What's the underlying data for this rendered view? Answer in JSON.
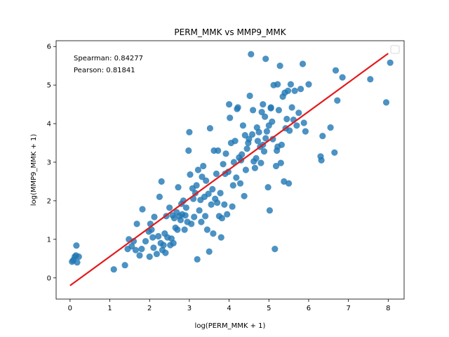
{
  "chart_data": {
    "type": "scatter",
    "title": "PERM_MMK vs MMP9_MMK",
    "xlabel": "log(PERM_MMK + 1)",
    "ylabel": "log(MMP9_MMK + 1)",
    "xlim": [
      -0.35,
      8.4
    ],
    "ylim": [
      -0.55,
      6.15
    ],
    "x_ticks": [
      0,
      1,
      2,
      3,
      4,
      5,
      6,
      7,
      8
    ],
    "y_ticks": [
      0,
      1,
      2,
      3,
      4,
      5,
      6
    ],
    "annotations": [
      "Spearman: 0.84277",
      "Pearson: 0.81841"
    ],
    "legend": {
      "placement": "top-right",
      "entries": []
    },
    "grid": false,
    "colors": {
      "points": "#1f77b4",
      "fit_line": "#e31a1c"
    },
    "fit_line": {
      "x": [
        0.0,
        8.0
      ],
      "y": [
        -0.2,
        5.82
      ]
    },
    "points": [
      [
        0.05,
        0.42
      ],
      [
        0.08,
        0.46
      ],
      [
        0.12,
        0.55
      ],
      [
        0.15,
        0.58
      ],
      [
        0.16,
        0.84
      ],
      [
        0.18,
        0.4
      ],
      [
        0.22,
        0.55
      ],
      [
        1.1,
        0.22
      ],
      [
        1.38,
        0.33
      ],
      [
        1.45,
        0.75
      ],
      [
        1.48,
        1.0
      ],
      [
        1.55,
        0.82
      ],
      [
        1.6,
        0.95
      ],
      [
        1.65,
        0.72
      ],
      [
        1.68,
        1.4
      ],
      [
        1.75,
        0.58
      ],
      [
        1.8,
        0.75
      ],
      [
        1.82,
        1.78
      ],
      [
        1.9,
        0.95
      ],
      [
        1.98,
        1.2
      ],
      [
        2.0,
        0.55
      ],
      [
        2.02,
        1.4
      ],
      [
        2.05,
        1.25
      ],
      [
        2.08,
        1.05
      ],
      [
        2.1,
        0.78
      ],
      [
        2.12,
        1.58
      ],
      [
        2.18,
        0.62
      ],
      [
        2.22,
        1.08
      ],
      [
        2.25,
        2.1
      ],
      [
        2.28,
        0.9
      ],
      [
        2.3,
        2.5
      ],
      [
        2.32,
        0.72
      ],
      [
        2.35,
        0.85
      ],
      [
        2.38,
        1.15
      ],
      [
        2.4,
        0.65
      ],
      [
        2.42,
        1.6
      ],
      [
        2.45,
        1.05
      ],
      [
        2.5,
        1.82
      ],
      [
        2.52,
        0.85
      ],
      [
        2.55,
        1.02
      ],
      [
        2.58,
        1.62
      ],
      [
        2.6,
        0.9
      ],
      [
        2.62,
        1.55
      ],
      [
        2.65,
        1.3
      ],
      [
        2.68,
        1.7
      ],
      [
        2.7,
        1.25
      ],
      [
        2.72,
        2.35
      ],
      [
        2.75,
        1.6
      ],
      [
        2.78,
        1.5
      ],
      [
        2.8,
        1.92
      ],
      [
        2.82,
        1.65
      ],
      [
        2.85,
        2.0
      ],
      [
        2.88,
        1.25
      ],
      [
        2.9,
        1.62
      ],
      [
        2.92,
        1.82
      ],
      [
        2.95,
        1.45
      ],
      [
        2.98,
        3.3
      ],
      [
        3.0,
        3.78
      ],
      [
        3.02,
        2.68
      ],
      [
        3.05,
        1.4
      ],
      [
        3.08,
        2.32
      ],
      [
        3.1,
        2.05
      ],
      [
        3.12,
        1.58
      ],
      [
        3.15,
        2.2
      ],
      [
        3.18,
        2.4
      ],
      [
        3.2,
        0.48
      ],
      [
        3.22,
        2.8
      ],
      [
        3.25,
        1.75
      ],
      [
        3.28,
        2.02
      ],
      [
        3.3,
        1.45
      ],
      [
        3.32,
        2.62
      ],
      [
        3.35,
        2.9
      ],
      [
        3.38,
        2.1
      ],
      [
        3.4,
        1.6
      ],
      [
        3.42,
        2.52
      ],
      [
        3.45,
        1.25
      ],
      [
        3.48,
        2.18
      ],
      [
        3.5,
        0.68
      ],
      [
        3.52,
        3.88
      ],
      [
        3.55,
        1.9
      ],
      [
        3.58,
        2.3
      ],
      [
        3.6,
        1.15
      ],
      [
        3.62,
        3.3
      ],
      [
        3.65,
        2.05
      ],
      [
        3.68,
        2.7
      ],
      [
        3.7,
        1.95
      ],
      [
        3.72,
        3.3
      ],
      [
        3.75,
        1.6
      ],
      [
        3.78,
        2.2
      ],
      [
        3.8,
        1.05
      ],
      [
        3.82,
        1.55
      ],
      [
        3.85,
        2.95
      ],
      [
        3.88,
        1.9
      ],
      [
        3.9,
        2.7
      ],
      [
        3.92,
        3.22
      ],
      [
        3.95,
        1.65
      ],
      [
        3.98,
        2.75
      ],
      [
        4.0,
        4.5
      ],
      [
        4.02,
        4.15
      ],
      [
        4.05,
        3.5
      ],
      [
        4.08,
        1.85
      ],
      [
        4.1,
        2.4
      ],
      [
        4.12,
        3.0
      ],
      [
        4.15,
        3.55
      ],
      [
        4.18,
        2.6
      ],
      [
        4.2,
        4.38
      ],
      [
        4.22,
        4.42
      ],
      [
        4.25,
        3.12
      ],
      [
        4.28,
        2.45
      ],
      [
        4.3,
        3.05
      ],
      [
        4.32,
        3.2
      ],
      [
        4.35,
        3.95
      ],
      [
        4.38,
        2.12
      ],
      [
        4.4,
        3.7
      ],
      [
        4.42,
        2.8
      ],
      [
        4.45,
        3.35
      ],
      [
        4.48,
        3.5
      ],
      [
        4.5,
        3.6
      ],
      [
        4.52,
        4.72
      ],
      [
        4.55,
        5.8
      ],
      [
        4.58,
        3.72
      ],
      [
        4.6,
        4.35
      ],
      [
        4.62,
        3.02
      ],
      [
        4.65,
        2.85
      ],
      [
        4.68,
        3.1
      ],
      [
        4.7,
        3.9
      ],
      [
        4.72,
        3.55
      ],
      [
        4.75,
        3.78
      ],
      [
        4.78,
        3.4
      ],
      [
        4.8,
        2.98
      ],
      [
        4.82,
        4.3
      ],
      [
        4.85,
        4.5
      ],
      [
        4.88,
        3.28
      ],
      [
        4.9,
        4.18
      ],
      [
        4.92,
        3.62
      ],
      [
        4.95,
        3.8
      ],
      [
        4.98,
        2.35
      ],
      [
        5.0,
        3.95
      ],
      [
        5.02,
        1.75
      ],
      [
        5.05,
        4.4
      ],
      [
        5.08,
        4.05
      ],
      [
        5.1,
        3.6
      ],
      [
        5.12,
        5.0
      ],
      [
        5.15,
        0.75
      ],
      [
        5.18,
        2.9
      ],
      [
        5.2,
        3.3
      ],
      [
        5.22,
        3.4
      ],
      [
        5.25,
        4.35
      ],
      [
        5.28,
        5.5
      ],
      [
        5.3,
        2.98
      ],
      [
        5.32,
        3.45
      ],
      [
        5.35,
        4.7
      ],
      [
        5.38,
        2.5
      ],
      [
        5.4,
        4.8
      ],
      [
        5.42,
        3.88
      ],
      [
        5.45,
        4.12
      ],
      [
        5.48,
        4.85
      ],
      [
        5.5,
        2.45
      ],
      [
        5.52,
        3.82
      ],
      [
        5.55,
        5.02
      ],
      [
        5.58,
        4.42
      ],
      [
        5.62,
        4.1
      ],
      [
        5.65,
        4.85
      ],
      [
        5.7,
        3.95
      ],
      [
        5.75,
        4.28
      ],
      [
        5.8,
        4.9
      ],
      [
        5.85,
        5.55
      ],
      [
        5.88,
        4.02
      ],
      [
        5.92,
        3.8
      ],
      [
        6.0,
        5.02
      ],
      [
        5.22,
        5.02
      ],
      [
        5.05,
        4.42
      ],
      [
        4.92,
        5.68
      ],
      [
        4.85,
        3.45
      ],
      [
        6.3,
        3.15
      ],
      [
        6.32,
        3.05
      ],
      [
        6.35,
        3.68
      ],
      [
        6.55,
        3.9
      ],
      [
        6.65,
        3.25
      ],
      [
        6.68,
        5.38
      ],
      [
        6.72,
        4.6
      ],
      [
        6.85,
        5.2
      ],
      [
        7.55,
        5.15
      ],
      [
        7.95,
        4.55
      ],
      [
        8.05,
        5.58
      ]
    ]
  }
}
